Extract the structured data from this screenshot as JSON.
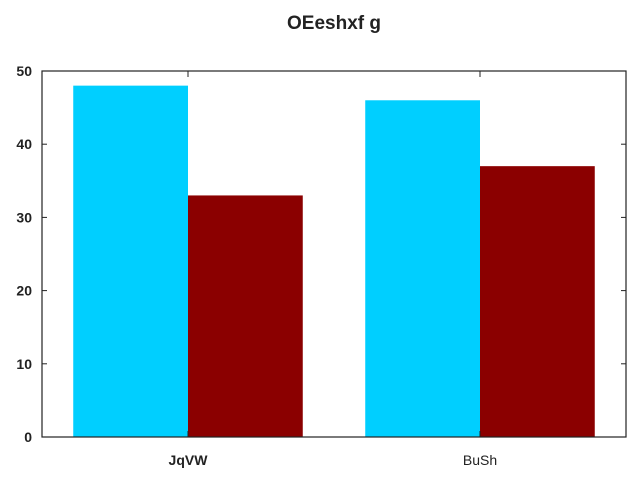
{
  "chart_data": {
    "type": "bar",
    "title": "OEeshxf g",
    "xlabel": "",
    "ylabel": "",
    "categories": [
      "JqVW",
      "BuSh"
    ],
    "series": [
      {
        "values": [
          48,
          46
        ],
        "color": "#00cfff"
      },
      {
        "values": [
          33,
          37
        ],
        "color": "#8b0000"
      }
    ],
    "ylim": [
      0,
      50
    ],
    "yticks": [
      "0",
      "10",
      "20",
      "30",
      "40",
      "50"
    ],
    "grid": false,
    "legend": "none"
  }
}
